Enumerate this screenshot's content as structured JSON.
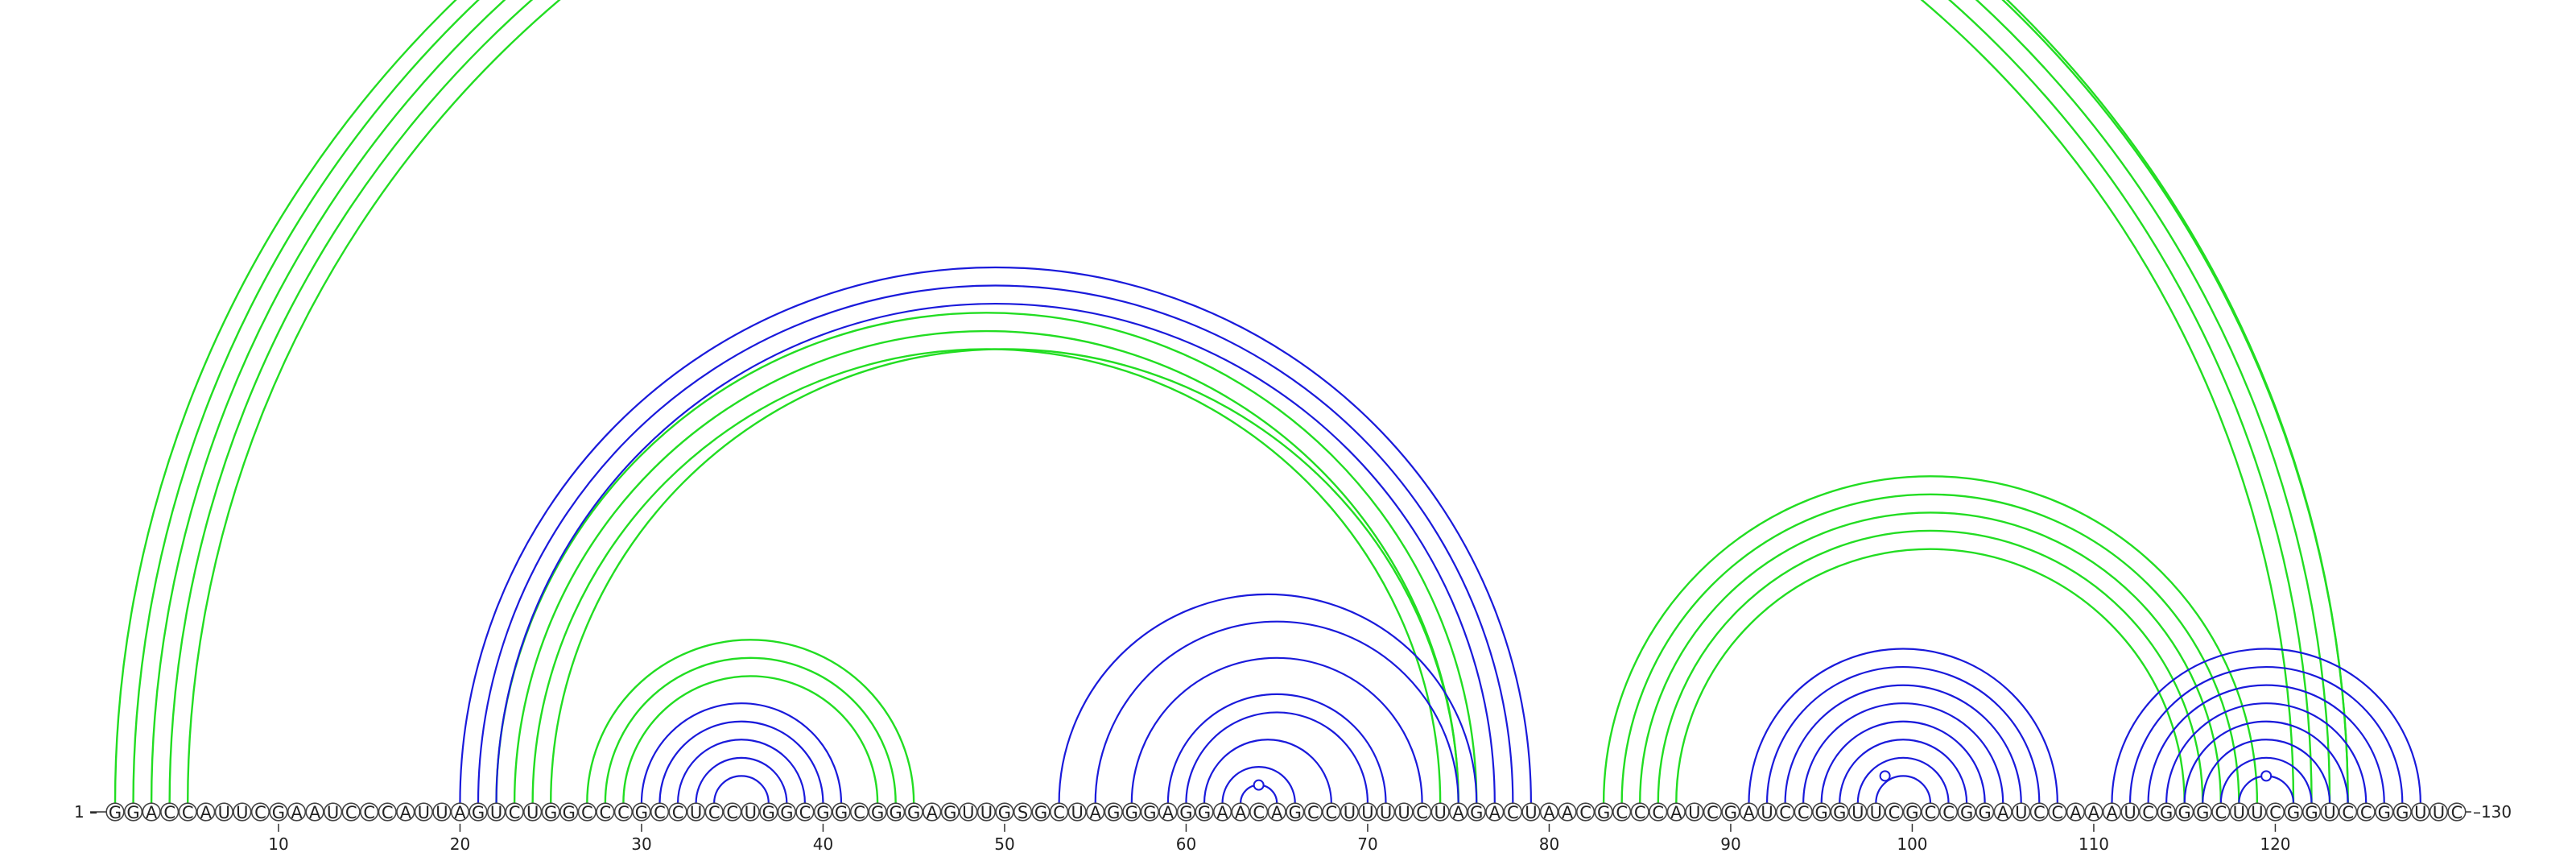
{
  "diagram": {
    "sequence": "GGACCAUUCGAAUCCCAUUAGUCUGGCCCGCCUCCUGGCGGCGGGAGUUGSGCUAGGGAGGAACAGCCUUUUCUAGACUAACGCCCAUCGAUCCGGUUCGCCGGAUCCAAAUCGGGCUUCGGUCCGGUUC",
    "start_label": "1",
    "end_label": "130",
    "ticks": [
      10,
      20,
      30,
      40,
      50,
      60,
      70,
      80,
      90,
      100,
      110,
      120
    ],
    "colors": {
      "upper": "#22dd22",
      "lower": "#1a1adb"
    },
    "green_pairs": [
      [
        1,
        124
      ],
      [
        2,
        124
      ],
      [
        3,
        123
      ],
      [
        4,
        122
      ],
      [
        5,
        121
      ],
      [
        22,
        76
      ],
      [
        23,
        75
      ],
      [
        24,
        74
      ],
      [
        25,
        75
      ],
      [
        27,
        45
      ],
      [
        28,
        44
      ],
      [
        29,
        43
      ],
      [
        83,
        119
      ],
      [
        84,
        118
      ],
      [
        85,
        117
      ],
      [
        86,
        116
      ],
      [
        87,
        115
      ]
    ],
    "blue_pairs": [
      [
        20,
        79
      ],
      [
        21,
        78
      ],
      [
        22,
        77
      ],
      [
        30,
        41
      ],
      [
        31,
        40
      ],
      [
        32,
        39
      ],
      [
        33,
        38
      ],
      [
        34,
        37
      ],
      [
        53,
        76
      ],
      [
        55,
        75
      ],
      [
        57,
        73
      ],
      [
        59,
        71
      ],
      [
        60,
        70
      ],
      [
        61,
        68
      ],
      [
        62,
        66
      ],
      [
        63,
        65
      ],
      [
        91,
        108
      ],
      [
        92,
        107
      ],
      [
        93,
        106
      ],
      [
        94,
        105
      ],
      [
        95,
        104
      ],
      [
        96,
        103
      ],
      [
        97,
        102
      ],
      [
        98,
        101
      ],
      [
        111,
        128
      ],
      [
        112,
        127
      ],
      [
        113,
        126
      ],
      [
        114,
        125
      ],
      [
        115,
        124
      ],
      [
        116,
        123
      ],
      [
        117,
        122
      ],
      [
        118,
        121
      ]
    ],
    "loop_markers": [
      {
        "position": 65.0,
        "color": "upper"
      },
      {
        "position": 64.0,
        "color": "lower"
      },
      {
        "position": 98.5,
        "color": "lower"
      },
      {
        "position": 119.5,
        "color": "lower"
      }
    ]
  }
}
